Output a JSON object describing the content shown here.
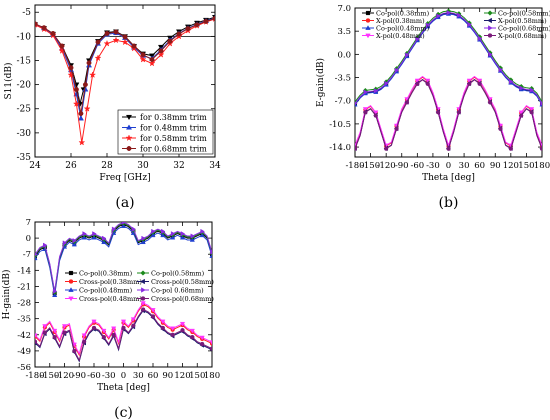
{
  "chart_data": [
    {
      "type": "line",
      "panel_label": "(a)",
      "xlabel": "Freq [GHz]",
      "ylabel": "S11(dB)",
      "xlim": [
        24,
        34
      ],
      "ylim": [
        -35,
        -3.5
      ],
      "xticks": [
        24,
        26,
        28,
        30,
        32,
        34
      ],
      "yticks": [
        -5,
        -10,
        -15,
        -20,
        -25,
        -30,
        -35
      ],
      "reference_line_y": -10,
      "legend_position": "bottom-right",
      "series": [
        {
          "name": "for 0.38mm trim",
          "color": "#000000",
          "marker": "triangle-down",
          "x": [
            24,
            24.5,
            25,
            25.5,
            26,
            26.3,
            26.5,
            26.7,
            27,
            27.5,
            28,
            28.5,
            29,
            29.5,
            30,
            30.5,
            31,
            31.5,
            32,
            32.5,
            33,
            33.5,
            34
          ],
          "y": [
            -7.5,
            -8.3,
            -9.5,
            -12,
            -16,
            -20,
            -24,
            -21,
            -15,
            -11,
            -9.2,
            -9,
            -10,
            -12,
            -13.6,
            -14,
            -12.2,
            -10.3,
            -9,
            -8,
            -7.2,
            -6.6,
            -6
          ]
        },
        {
          "name": "for 0.48mm trim",
          "color": "#1f3fd0",
          "marker": "triangle-up",
          "x": [
            24,
            24.5,
            25,
            25.5,
            26,
            26.3,
            26.55,
            26.8,
            27,
            27.5,
            28,
            28.5,
            29,
            29.5,
            30,
            30.5,
            31,
            31.5,
            32,
            32.5,
            33,
            33.5,
            34
          ],
          "y": [
            -7.5,
            -8.3,
            -9.6,
            -12.5,
            -17,
            -22,
            -27,
            -21,
            -16,
            -11.5,
            -9.6,
            -9.3,
            -10.3,
            -12.3,
            -14,
            -14.6,
            -12.8,
            -10.8,
            -9.4,
            -8.3,
            -7.5,
            -6.8,
            -6.2
          ]
        },
        {
          "name": "for 0.58mm trim",
          "color": "#ff2020",
          "marker": "star",
          "x": [
            24,
            24.5,
            25,
            25.5,
            26,
            26.3,
            26.6,
            26.9,
            27.2,
            27.5,
            28,
            28.5,
            29,
            29.5,
            30,
            30.5,
            31,
            31.5,
            32,
            32.5,
            33,
            33.5,
            34
          ],
          "y": [
            -7.6,
            -8.5,
            -9.8,
            -13,
            -18,
            -24,
            -32,
            -25,
            -18,
            -14.5,
            -11.5,
            -10.8,
            -11.2,
            -12.5,
            -14.8,
            -15.6,
            -13.8,
            -11.5,
            -10,
            -8.8,
            -7.8,
            -7,
            -6.4
          ]
        },
        {
          "name": "for 0.68mm trim",
          "color": "#8b1a1a",
          "marker": "circle",
          "x": [
            24,
            24.5,
            25,
            25.5,
            26,
            26.3,
            26.55,
            26.8,
            27,
            27.5,
            28,
            28.5,
            29,
            29.5,
            30,
            30.5,
            31,
            31.5,
            32,
            32.5,
            33,
            33.5,
            34
          ],
          "y": [
            -7.4,
            -8.2,
            -9.4,
            -12,
            -16.5,
            -21,
            -26,
            -20,
            -15.5,
            -11.2,
            -9.4,
            -9.1,
            -10.1,
            -12,
            -13.8,
            -14.8,
            -13,
            -11,
            -9.5,
            -8.4,
            -7.6,
            -6.9,
            -6.3
          ]
        }
      ],
      "legend": [
        "for 0.38mm trim",
        "for 0.48mm trim",
        "for 0.58mm trim",
        "for 0.68mm trim"
      ]
    },
    {
      "type": "line",
      "panel_label": "(b)",
      "xlabel": "Theta [deg]",
      "ylabel": "E-gain(dB)",
      "xlim": [
        -180,
        180
      ],
      "ylim": [
        -15.5,
        7
      ],
      "xticks": [
        -180,
        -150,
        -120,
        -90,
        -60,
        -30,
        0,
        30,
        60,
        90,
        120,
        150,
        180
      ],
      "yticks": [
        7.0,
        3.5,
        0.0,
        -3.5,
        -7.0,
        -10.5,
        -14.0
      ],
      "legend_position": "top",
      "series": [
        {
          "name": "Co-pol(0.38mm)",
          "color": "#000000",
          "marker": "square",
          "group": "co"
        },
        {
          "name": "X-pol(0.38mm)",
          "color": "#ff2020",
          "marker": "circle",
          "group": "x"
        },
        {
          "name": "Co-pol(0.48mm)",
          "color": "#1f3fd0",
          "marker": "triangle-up",
          "group": "co"
        },
        {
          "name": "X-pol(0.48mm)",
          "color": "#ff33ff",
          "marker": "triangle-down",
          "group": "x"
        },
        {
          "name": "Co-pol(0.58mm)",
          "color": "#1a8a1a",
          "marker": "diamond",
          "group": "co"
        },
        {
          "name": "X-pol(0.58mm)",
          "color": "#1a1a6b",
          "marker": "triangle-left",
          "group": "x"
        },
        {
          "name": "Co-pol(0.68mm)",
          "color": "#8a2be2",
          "marker": "triangle-right",
          "group": "co"
        },
        {
          "name": "X-pol(0.68mm)",
          "color": "#7a1a7a",
          "marker": "circle",
          "group": "x"
        }
      ],
      "co_curve": {
        "x": [
          -180,
          -170,
          -160,
          -150,
          -140,
          -130,
          -120,
          -110,
          -100,
          -90,
          -80,
          -70,
          -60,
          -50,
          -40,
          -30,
          -20,
          -10,
          0,
          10,
          20,
          30,
          40,
          50,
          60,
          70,
          80,
          90,
          100,
          110,
          120,
          130,
          140,
          150,
          160,
          170,
          180
        ],
        "y": [
          -7.5,
          -6.5,
          -5.8,
          -5.7,
          -5.6,
          -5.2,
          -4.5,
          -3.6,
          -2.5,
          -1.4,
          -0.2,
          1.0,
          2.2,
          3.3,
          4.3,
          5.1,
          5.7,
          6.1,
          6.2,
          6.1,
          5.8,
          5.2,
          4.4,
          3.4,
          2.3,
          1.1,
          -0.1,
          -1.3,
          -2.4,
          -3.4,
          -4.2,
          -4.8,
          -5.2,
          -5.4,
          -5.5,
          -6.2,
          -7.5
        ]
      },
      "x_curve": {
        "x": [
          -180,
          -170,
          -160,
          -150,
          -140,
          -130,
          -120,
          -110,
          -100,
          -90,
          -80,
          -70,
          -60,
          -50,
          -40,
          -30,
          -20,
          -10,
          0,
          10,
          20,
          30,
          40,
          50,
          60,
          70,
          80,
          90,
          100,
          110,
          120,
          130,
          140,
          150,
          160,
          170,
          180
        ],
        "y": [
          -14,
          -12,
          -8.5,
          -8,
          -9,
          -11.5,
          -14,
          -13.5,
          -11,
          -8.5,
          -7,
          -5.5,
          -4.2,
          -3.6,
          -4.2,
          -6,
          -8.5,
          -11.5,
          -14,
          -11.5,
          -8.5,
          -6,
          -4.2,
          -3.6,
          -4.2,
          -5.5,
          -7,
          -8.5,
          -11,
          -13.5,
          -14,
          -11.5,
          -9,
          -8,
          -8.5,
          -12,
          -14
        ]
      }
    },
    {
      "type": "line",
      "panel_label": "(c)",
      "xlabel": "Theta [deg]",
      "ylabel": "H-gain(dB)",
      "xlim": [
        -180,
        180
      ],
      "ylim": [
        -56,
        7
      ],
      "xticks": [
        -180,
        -150,
        -120,
        -90,
        -60,
        -30,
        0,
        30,
        60,
        90,
        120,
        150,
        180
      ],
      "yticks": [
        7,
        0,
        -7,
        -14,
        -21,
        -28,
        -35,
        -42,
        -49,
        -56
      ],
      "legend_position": "center",
      "series": [
        {
          "name": "Co-pol(0.38mm)",
          "color": "#000000",
          "marker": "square",
          "group": "co"
        },
        {
          "name": "Cross-pol(0.38mm)",
          "color": "#ff2020",
          "marker": "circle",
          "group": "x"
        },
        {
          "name": "Co-pol(0.48mm)",
          "color": "#1f3fd0",
          "marker": "triangle-up",
          "group": "co"
        },
        {
          "name": "Cross-pol(0.48mm)",
          "color": "#ff33ff",
          "marker": "triangle-down",
          "group": "x"
        },
        {
          "name": "Co-pol(0.58mm)",
          "color": "#1a8a1a",
          "marker": "diamond",
          "group": "co"
        },
        {
          "name": "Cross-pol(0.58mm)",
          "color": "#1a1a6b",
          "marker": "triangle-left",
          "group": "x"
        },
        {
          "name": "Co-pol 0.68mm)",
          "color": "#8a2be2",
          "marker": "triangle-right",
          "group": "co"
        },
        {
          "name": "Cross-pol(0.68mm)",
          "color": "#7a1a7a",
          "marker": "circle",
          "group": "x"
        }
      ],
      "co_curve": {
        "x": [
          -180,
          -170,
          -160,
          -150,
          -140,
          -130,
          -120,
          -110,
          -100,
          -90,
          -80,
          -70,
          -60,
          -50,
          -40,
          -30,
          -20,
          -10,
          0,
          10,
          20,
          30,
          40,
          50,
          60,
          70,
          80,
          90,
          100,
          110,
          120,
          130,
          140,
          150,
          160,
          170,
          180
        ],
        "y": [
          -8,
          -5,
          -4,
          -12,
          -24,
          -9,
          -3,
          -1,
          -2,
          0,
          1,
          0,
          1,
          0,
          -1,
          -3,
          3,
          5,
          6,
          5,
          3,
          -2,
          -1,
          0,
          2,
          3,
          2,
          0,
          1,
          2,
          1,
          0,
          0,
          1,
          2,
          0,
          -7
        ]
      },
      "x_curve": {
        "x": [
          -180,
          -170,
          -160,
          -150,
          -140,
          -130,
          -120,
          -110,
          -100,
          -90,
          -80,
          -70,
          -60,
          -50,
          -40,
          -30,
          -20,
          -10,
          0,
          10,
          20,
          30,
          40,
          50,
          60,
          70,
          80,
          90,
          100,
          110,
          120,
          130,
          140,
          150,
          160,
          170,
          180
        ],
        "y": [
          -44,
          -46,
          -40,
          -38,
          -42,
          -46,
          -40,
          -39,
          -48,
          -52,
          -44,
          -40,
          -38,
          -39,
          -42,
          -45,
          -41,
          -47,
          -38,
          -40,
          -37,
          -33,
          -30,
          -31,
          -33,
          -36,
          -38,
          -40,
          -41,
          -40,
          -39,
          -41,
          -42,
          -44,
          -45,
          -46,
          -47
        ]
      }
    }
  ]
}
